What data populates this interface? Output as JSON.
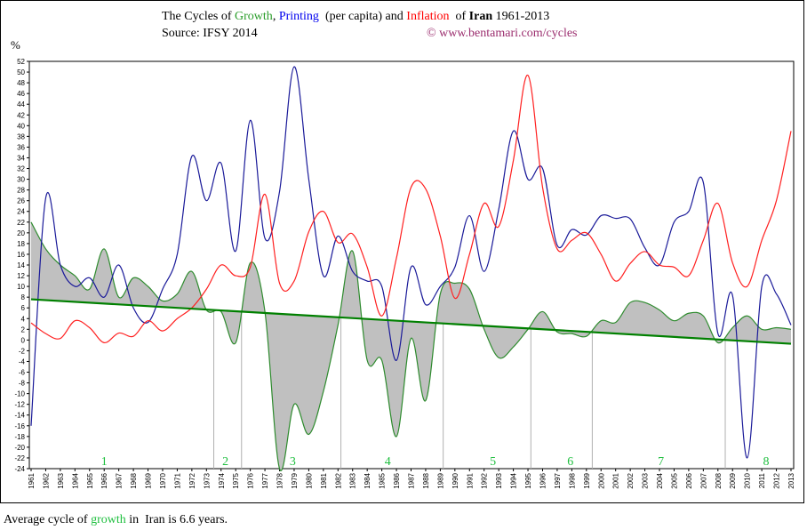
{
  "header": {
    "title_pre": "The Cycles of ",
    "title_growth": "Growth",
    "title_sep": ", ",
    "title_printing": "Printing",
    "title_mid": "  (per capita) and ",
    "title_inflation": "Inflation",
    "title_of": "  of ",
    "title_country": "Iran",
    "title_years": " 1961-2013",
    "source": "Source: IFSY 2014",
    "copyright": "© www.bentamari.com/cycles",
    "y_unit": "%"
  },
  "footer": {
    "pre": "Average cycle of ",
    "growth_word": "growth",
    "post": " in  Iran is 6.6 years."
  },
  "chart_data": {
    "type": "line",
    "title": "The Cycles of Growth, Printing (per capita) and Inflation of Iran 1961-2013",
    "ylabel": "%",
    "ylim": [
      -24,
      52
    ],
    "yticks_step": 2,
    "grid": false,
    "x": [
      1961,
      1962,
      1963,
      1964,
      1965,
      1966,
      1967,
      1968,
      1969,
      1970,
      1971,
      1972,
      1973,
      1974,
      1975,
      1976,
      1977,
      1978,
      1979,
      1980,
      1981,
      1982,
      1983,
      1984,
      1985,
      1986,
      1987,
      1988,
      1989,
      1990,
      1991,
      1992,
      1993,
      1994,
      1995,
      1996,
      1997,
      1998,
      1999,
      2000,
      2001,
      2002,
      2003,
      2004,
      2005,
      2006,
      2007,
      2008,
      2009,
      2010,
      2011,
      2012,
      2013
    ],
    "series": [
      {
        "name": "Growth",
        "color": "#2e8b2e",
        "fill_to_trend": "#c0c0c0",
        "values": [
          22,
          17,
          14,
          12,
          9.5,
          17,
          8,
          11.6,
          10,
          7.3,
          8.6,
          12.8,
          5.6,
          5.3,
          -0.5,
          14.4,
          5.3,
          -24,
          -12,
          -17.6,
          -9.6,
          2.8,
          16.6,
          -3.8,
          -3.8,
          -18,
          0.3,
          -11.3,
          8.6,
          10.6,
          9.5,
          2,
          -3.3,
          -1.3,
          2,
          5.3,
          1.5,
          1.2,
          0.7,
          3.6,
          3.3,
          7,
          7,
          5.6,
          3.6,
          5,
          4.5,
          -0.5,
          2.3,
          4.5,
          2,
          2.3,
          2
        ]
      },
      {
        "name": "Printing",
        "color": "#1a1a99",
        "values": [
          -16,
          26.5,
          14,
          10,
          11.6,
          8,
          14,
          6,
          3.3,
          9.5,
          16,
          34.3,
          26,
          33,
          16.6,
          41,
          19,
          27.7,
          51,
          30,
          12,
          19.4,
          12.8,
          11,
          10,
          -3.8,
          13.6,
          6.6,
          10,
          13.6,
          23.2,
          12.8,
          24.4,
          39,
          30,
          32,
          17.7,
          20.6,
          19.6,
          23.2,
          22.7,
          22.6,
          17.2,
          14,
          22,
          24,
          29.4,
          1.2,
          8.3,
          -22,
          10,
          8.6,
          2.8
        ]
      },
      {
        "name": "Inflation",
        "color": "#ff2020",
        "values": [
          3.2,
          1.2,
          0.3,
          3.6,
          2.3,
          -0.5,
          1.3,
          0.7,
          3.6,
          1.7,
          4,
          6,
          9.5,
          14,
          12,
          13.6,
          27.2,
          10.6,
          11,
          20.2,
          24,
          18.2,
          19.8,
          13.6,
          4.5,
          15.3,
          28.5,
          28.2,
          19.4,
          7.8,
          16,
          25.5,
          21.2,
          33.5,
          49.4,
          28.5,
          17,
          18.6,
          20,
          16,
          11,
          14.3,
          16.5,
          14,
          13.6,
          12,
          18.6,
          25.5,
          14.4,
          10,
          18.6,
          26,
          39
        ]
      }
    ],
    "trend": {
      "color": "#008000",
      "start": [
        1961,
        7.6
      ],
      "end": [
        2013,
        -0.7
      ]
    },
    "cycle_boundaries": [
      1973.5,
      1975.4,
      1982.2,
      1989.2,
      1995.2,
      1999.4,
      2008.5
    ],
    "cycle_labels": [
      {
        "label": "1",
        "x": 1966
      },
      {
        "label": "2",
        "x": 1974.3
      },
      {
        "label": "3",
        "x": 1978.9
      },
      {
        "label": "4",
        "x": 1985.4
      },
      {
        "label": "5",
        "x": 1992.6
      },
      {
        "label": "6",
        "x": 1997.9
      },
      {
        "label": "7",
        "x": 2004.1
      },
      {
        "label": "8",
        "x": 2011.3
      }
    ],
    "cycle_label_color": "#1fbf3f"
  }
}
